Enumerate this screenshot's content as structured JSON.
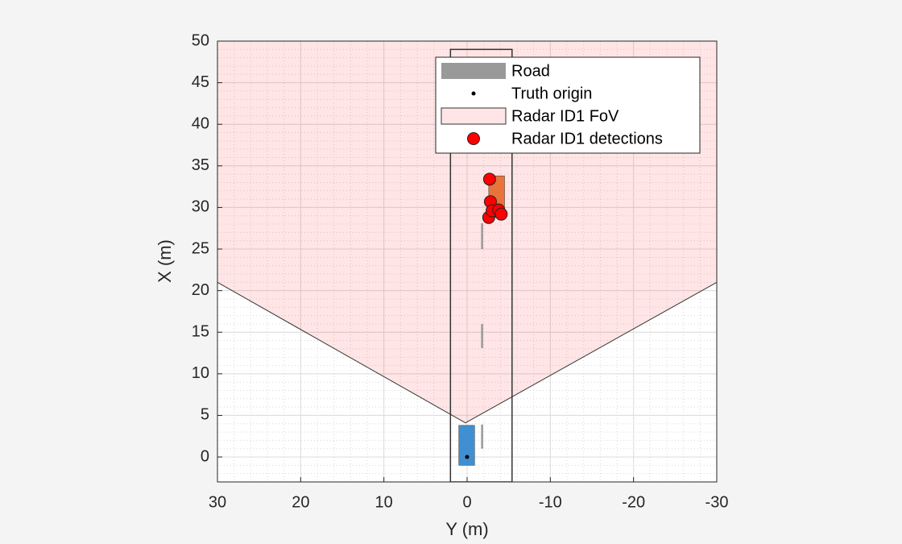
{
  "chart_data": {
    "type": "scatter",
    "xlabel": "Y (m)",
    "ylabel": "X (m)",
    "xlim": [
      30,
      -30
    ],
    "ylim": [
      -3,
      50
    ],
    "xticks": [
      30,
      20,
      10,
      0,
      -10,
      -20,
      -30
    ],
    "yticks": [
      0,
      5,
      10,
      15,
      20,
      25,
      30,
      35,
      40,
      45,
      50
    ],
    "grid": true,
    "minor_grid": true,
    "legend": "northeast",
    "series": [
      {
        "name": "Road",
        "kind": "road",
        "color": "#999999",
        "x": [
          2,
          -5.4
        ],
        "y": [
          -3,
          49
        ]
      },
      {
        "name": "Truth origin",
        "kind": "point",
        "color": "#000000",
        "x": [
          0
        ],
        "y": [
          0
        ]
      },
      {
        "name": "Radar ID1 FoV",
        "kind": "patch",
        "color": "#ff0000",
        "x": [
          30,
          0.2,
          -30,
          -30,
          30
        ],
        "y": [
          21,
          4.1,
          21,
          50,
          50
        ]
      },
      {
        "name": "Radar ID1 detections",
        "kind": "scatter",
        "color": "#ff0000",
        "x": [
          -2.7,
          -2.8,
          -2.6,
          -3.0,
          -3.8,
          -4.1
        ],
        "y": [
          33.4,
          30.7,
          28.8,
          29.6,
          29.7,
          29.2
        ]
      }
    ],
    "actors": [
      {
        "color": "#3f8fd2",
        "x": [
          1,
          -0.9
        ],
        "y": [
          -1,
          3.8
        ]
      },
      {
        "color": "#e8743b",
        "x": [
          -2.6,
          -4.5
        ],
        "y": [
          28.8,
          33.8
        ]
      }
    ],
    "lane_marks": {
      "color": "#999999",
      "x": -1.8,
      "y_segments": [
        [
          1,
          3.9
        ],
        [
          13.1,
          16
        ],
        [
          25,
          28.1
        ]
      ]
    }
  }
}
